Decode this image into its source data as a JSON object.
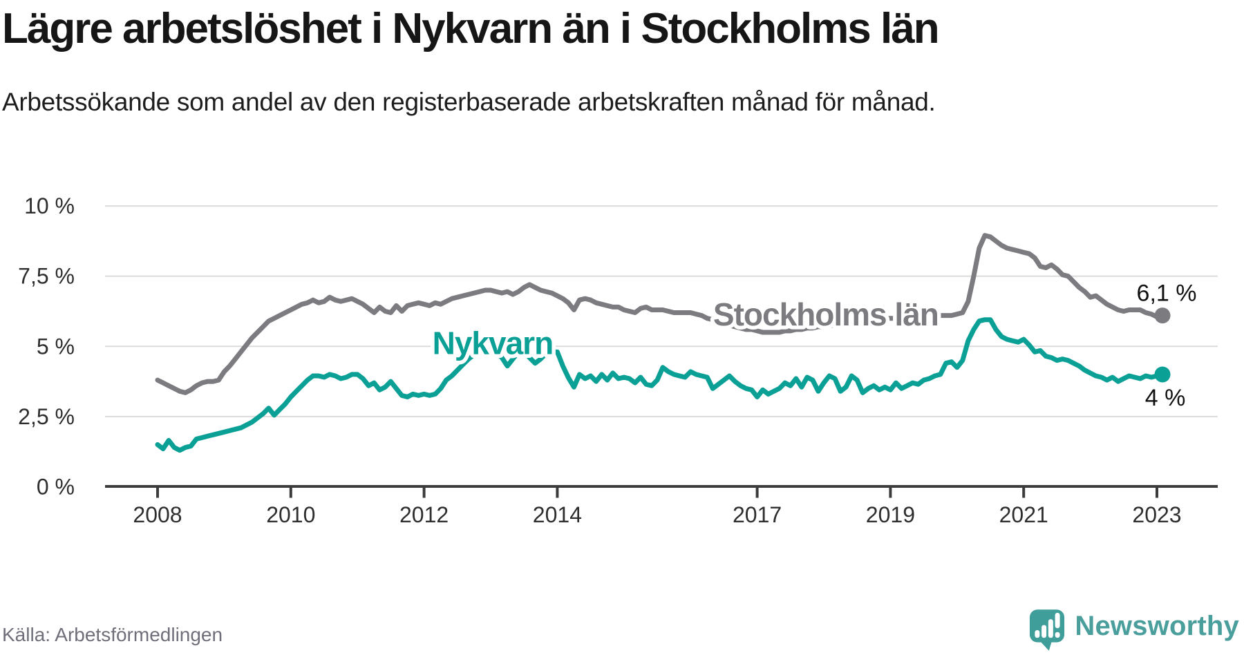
{
  "title": "Lägre arbetslöshet i Nykvarn än i Stockholms län",
  "subtitle": "Arbetssökande som andel av den registerbaserade arbetskraften månad för månad.",
  "source": "Källa: Arbetsförmedlingen",
  "brand": {
    "name": "Newsworthy",
    "icon_color": "#3f9e9a",
    "text_color": "#4a9e9b"
  },
  "colors": {
    "nykvarn_teal": "#0aa096",
    "stockholm_gray": "#7b7b80",
    "gridline": "#dbdbdb",
    "axis": "#3c3c3c",
    "axis_text": "#2e2e2e",
    "value_label_text": "#111111",
    "background": "#ffffff"
  },
  "chart_data": {
    "type": "line",
    "x_start": 2008.0,
    "x_step": "monthly",
    "x_end": 2023.08,
    "ylim": [
      0,
      10
    ],
    "grid": "horizontal",
    "x_ticks": [
      {
        "year": 2008,
        "label": "2008"
      },
      {
        "year": 2010,
        "label": "2010"
      },
      {
        "year": 2012,
        "label": "2012"
      },
      {
        "year": 2014,
        "label": "2014"
      },
      {
        "year": 2017,
        "label": "2017"
      },
      {
        "year": 2019,
        "label": "2019"
      },
      {
        "year": 2021,
        "label": "2021"
      },
      {
        "year": 2023,
        "label": "2023"
      }
    ],
    "y_ticks": [
      {
        "value": 0,
        "label": "0 %"
      },
      {
        "value": 2.5,
        "label": "2,5 %"
      },
      {
        "value": 5,
        "label": "5 %"
      },
      {
        "value": 7.5,
        "label": "7,5 %"
      },
      {
        "value": 10,
        "label": "10 %"
      }
    ],
    "series": [
      {
        "name": "Stockholms län",
        "color": "#7b7b80",
        "end_label": "6,1 %",
        "label_x": 2018.03,
        "label_y": 6.14,
        "end_label_offset": [
          6,
          -21
        ],
        "values": [
          3.8,
          3.7,
          3.6,
          3.5,
          3.4,
          3.35,
          3.45,
          3.6,
          3.7,
          3.75,
          3.75,
          3.8,
          4.1,
          4.3,
          4.55,
          4.8,
          5.05,
          5.3,
          5.5,
          5.7,
          5.9,
          6.0,
          6.1,
          6.2,
          6.3,
          6.4,
          6.5,
          6.55,
          6.65,
          6.55,
          6.6,
          6.75,
          6.65,
          6.6,
          6.65,
          6.7,
          6.6,
          6.5,
          6.35,
          6.2,
          6.4,
          6.25,
          6.2,
          6.45,
          6.25,
          6.45,
          6.5,
          6.55,
          6.5,
          6.45,
          6.55,
          6.5,
          6.6,
          6.7,
          6.75,
          6.8,
          6.85,
          6.9,
          6.95,
          7.0,
          7.0,
          6.95,
          6.9,
          6.95,
          6.85,
          6.95,
          7.1,
          7.2,
          7.1,
          7.0,
          6.95,
          6.9,
          6.8,
          6.7,
          6.55,
          6.3,
          6.65,
          6.7,
          6.65,
          6.55,
          6.5,
          6.45,
          6.4,
          6.4,
          6.3,
          6.25,
          6.2,
          6.35,
          6.4,
          6.3,
          6.3,
          6.3,
          6.25,
          6.2,
          6.2,
          6.2,
          6.2,
          6.15,
          6.1,
          6.0,
          5.95,
          5.9,
          5.8,
          5.75,
          5.7,
          5.65,
          5.6,
          5.6,
          5.55,
          5.5,
          5.5,
          5.5,
          5.5,
          5.55,
          5.55,
          5.6,
          5.6,
          5.65,
          5.65,
          5.7,
          5.7,
          5.75,
          5.75,
          5.8,
          5.8,
          5.85,
          5.85,
          5.9,
          5.9,
          5.95,
          5.95,
          6.0,
          6.0,
          6.0,
          6.05,
          6.05,
          6.05,
          6.1,
          6.05,
          6.1,
          6.1,
          6.1,
          6.1,
          6.1,
          6.15,
          6.2,
          6.6,
          7.5,
          8.5,
          8.95,
          8.9,
          8.75,
          8.6,
          8.5,
          8.45,
          8.4,
          8.35,
          8.3,
          8.15,
          7.85,
          7.8,
          7.9,
          7.75,
          7.55,
          7.5,
          7.3,
          7.1,
          6.95,
          6.75,
          6.8,
          6.65,
          6.5,
          6.4,
          6.3,
          6.25,
          6.3,
          6.3,
          6.3,
          6.2,
          6.15,
          6.05,
          6.1
        ]
      },
      {
        "name": "Nykvarn",
        "color": "#0aa096",
        "end_label": "4 %",
        "label_x": 2013.03,
        "label_y": 5.12,
        "end_label_offset": [
          4,
          45
        ],
        "values": [
          1.5,
          1.35,
          1.65,
          1.4,
          1.3,
          1.4,
          1.45,
          1.7,
          1.75,
          1.8,
          1.85,
          1.9,
          1.95,
          2.0,
          2.05,
          2.1,
          2.2,
          2.3,
          2.45,
          2.6,
          2.8,
          2.55,
          2.75,
          2.95,
          3.2,
          3.4,
          3.6,
          3.8,
          3.95,
          3.95,
          3.9,
          4.0,
          3.95,
          3.85,
          3.9,
          4.0,
          4.0,
          3.85,
          3.6,
          3.7,
          3.45,
          3.55,
          3.75,
          3.5,
          3.25,
          3.2,
          3.3,
          3.25,
          3.3,
          3.25,
          3.3,
          3.5,
          3.8,
          3.95,
          4.15,
          4.35,
          4.55,
          4.7,
          4.75,
          4.7,
          4.75,
          4.8,
          4.6,
          4.3,
          4.55,
          4.8,
          4.85,
          4.6,
          4.4,
          4.55,
          4.75,
          4.8,
          4.8,
          4.3,
          3.88,
          3.55,
          4.0,
          3.85,
          3.95,
          3.75,
          4.0,
          3.8,
          4.05,
          3.85,
          3.9,
          3.85,
          3.7,
          3.9,
          3.65,
          3.6,
          3.8,
          4.25,
          4.1,
          4.0,
          3.95,
          3.9,
          4.1,
          4.0,
          3.95,
          3.9,
          3.5,
          3.65,
          3.8,
          3.95,
          3.75,
          3.6,
          3.5,
          3.45,
          3.2,
          3.45,
          3.3,
          3.4,
          3.5,
          3.7,
          3.6,
          3.85,
          3.55,
          3.9,
          3.8,
          3.4,
          3.7,
          3.95,
          3.85,
          3.4,
          3.55,
          3.95,
          3.8,
          3.35,
          3.5,
          3.6,
          3.45,
          3.55,
          3.45,
          3.7,
          3.5,
          3.6,
          3.7,
          3.65,
          3.8,
          3.85,
          3.95,
          4.0,
          4.4,
          4.45,
          4.25,
          4.5,
          5.2,
          5.6,
          5.9,
          5.95,
          5.95,
          5.6,
          5.35,
          5.25,
          5.2,
          5.15,
          5.25,
          5.05,
          4.8,
          4.85,
          4.65,
          4.6,
          4.5,
          4.55,
          4.5,
          4.4,
          4.3,
          4.15,
          4.05,
          3.95,
          3.9,
          3.8,
          3.9,
          3.75,
          3.85,
          3.95,
          3.9,
          3.85,
          3.95,
          3.9,
          3.95,
          4.0
        ]
      }
    ]
  }
}
